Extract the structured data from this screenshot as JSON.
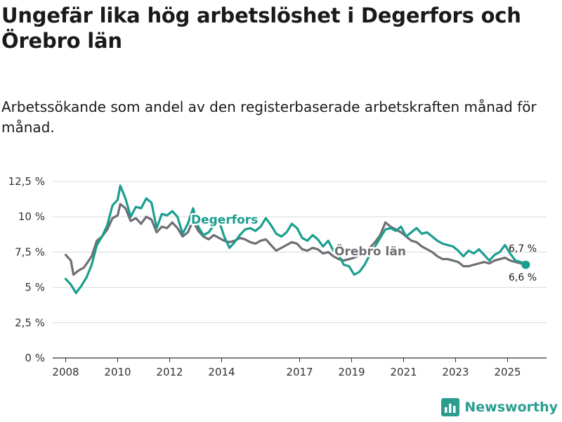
{
  "title": "Ungefär lika hög arbetslöshet i Degerfors och Örebro län",
  "subtitle": "Arbetssökande som andel av den registerbaserade arbetskraften månad för månad.",
  "brand": {
    "name": "Newsworthy",
    "icon": "bar-chart-logo-icon"
  },
  "colors": {
    "degerfors": "#1a9e8f",
    "orebro": "#6e6e73",
    "grid": "#d9d9d9",
    "axis": "#333333"
  },
  "chart_data": {
    "type": "line",
    "title": "Ungefär lika hög arbetslöshet i Degerfors och Örebro län",
    "ylabel": "",
    "xlabel": "",
    "ylim": [
      0,
      12.5
    ],
    "xlim": [
      2007.5,
      2026.5
    ],
    "y_ticks": [
      {
        "value": 0,
        "label": "0 %"
      },
      {
        "value": 2.5,
        "label": "2,5 %"
      },
      {
        "value": 5,
        "label": "5 %"
      },
      {
        "value": 7.5,
        "label": "7,5 %"
      },
      {
        "value": 10,
        "label": "10 %"
      },
      {
        "value": 12.5,
        "label": "12,5 %"
      }
    ],
    "x_ticks": [
      {
        "value": 2008,
        "label": "2008"
      },
      {
        "value": 2010,
        "label": "2010"
      },
      {
        "value": 2012,
        "label": "2012"
      },
      {
        "value": 2014,
        "label": "2014"
      },
      {
        "value": 2017,
        "label": "2017"
      },
      {
        "value": 2019,
        "label": "2019"
      },
      {
        "value": 2021,
        "label": "2021"
      },
      {
        "value": 2023,
        "label": "2023"
      },
      {
        "value": 2025,
        "label": "2025"
      }
    ],
    "series": [
      {
        "name": "Degerfors",
        "label": "Degerfors",
        "end_label": "6,7 %",
        "points": [
          [
            2008.0,
            5.6
          ],
          [
            2008.2,
            5.2
          ],
          [
            2008.4,
            4.6
          ],
          [
            2008.6,
            5.1
          ],
          [
            2008.8,
            5.7
          ],
          [
            2009.0,
            6.6
          ],
          [
            2009.2,
            8.0
          ],
          [
            2009.4,
            8.6
          ],
          [
            2009.6,
            9.4
          ],
          [
            2009.8,
            10.8
          ],
          [
            2010.0,
            11.2
          ],
          [
            2010.1,
            12.2
          ],
          [
            2010.3,
            11.3
          ],
          [
            2010.5,
            10.0
          ],
          [
            2010.7,
            10.7
          ],
          [
            2010.9,
            10.6
          ],
          [
            2011.1,
            11.3
          ],
          [
            2011.3,
            11.0
          ],
          [
            2011.5,
            9.2
          ],
          [
            2011.7,
            10.2
          ],
          [
            2011.9,
            10.1
          ],
          [
            2012.1,
            10.4
          ],
          [
            2012.3,
            10.0
          ],
          [
            2012.5,
            8.8
          ],
          [
            2012.7,
            9.5
          ],
          [
            2012.9,
            10.6
          ],
          [
            2013.1,
            9.3
          ],
          [
            2013.3,
            8.7
          ],
          [
            2013.5,
            8.9
          ],
          [
            2013.7,
            9.4
          ],
          [
            2013.9,
            9.7
          ],
          [
            2014.1,
            8.6
          ],
          [
            2014.3,
            7.8
          ],
          [
            2014.5,
            8.2
          ],
          [
            2014.7,
            8.7
          ],
          [
            2014.9,
            9.1
          ],
          [
            2015.1,
            9.2
          ],
          [
            2015.3,
            9.0
          ],
          [
            2015.5,
            9.3
          ],
          [
            2015.7,
            9.9
          ],
          [
            2015.9,
            9.4
          ],
          [
            2016.1,
            8.8
          ],
          [
            2016.3,
            8.6
          ],
          [
            2016.5,
            8.9
          ],
          [
            2016.7,
            9.5
          ],
          [
            2016.9,
            9.2
          ],
          [
            2017.1,
            8.5
          ],
          [
            2017.3,
            8.3
          ],
          [
            2017.5,
            8.7
          ],
          [
            2017.7,
            8.4
          ],
          [
            2017.9,
            7.9
          ],
          [
            2018.1,
            8.3
          ],
          [
            2018.3,
            7.6
          ],
          [
            2018.5,
            7.3
          ],
          [
            2018.7,
            6.6
          ],
          [
            2018.9,
            6.5
          ],
          [
            2019.1,
            5.9
          ],
          [
            2019.3,
            6.1
          ],
          [
            2019.5,
            6.6
          ],
          [
            2019.7,
            7.3
          ],
          [
            2019.9,
            7.9
          ],
          [
            2020.1,
            8.5
          ],
          [
            2020.3,
            9.1
          ],
          [
            2020.5,
            9.2
          ],
          [
            2020.7,
            9.0
          ],
          [
            2020.9,
            9.3
          ],
          [
            2021.1,
            8.6
          ],
          [
            2021.3,
            8.9
          ],
          [
            2021.5,
            9.2
          ],
          [
            2021.7,
            8.8
          ],
          [
            2021.9,
            8.9
          ],
          [
            2022.1,
            8.6
          ],
          [
            2022.3,
            8.3
          ],
          [
            2022.5,
            8.1
          ],
          [
            2022.7,
            8.0
          ],
          [
            2022.9,
            7.9
          ],
          [
            2023.1,
            7.6
          ],
          [
            2023.3,
            7.2
          ],
          [
            2023.5,
            7.6
          ],
          [
            2023.7,
            7.4
          ],
          [
            2023.9,
            7.7
          ],
          [
            2024.1,
            7.3
          ],
          [
            2024.3,
            6.9
          ],
          [
            2024.5,
            7.3
          ],
          [
            2024.7,
            7.5
          ],
          [
            2024.9,
            8.0
          ],
          [
            2025.1,
            7.4
          ],
          [
            2025.3,
            6.9
          ],
          [
            2025.5,
            6.8
          ],
          [
            2025.7,
            6.7
          ]
        ]
      },
      {
        "name": "Örebro län",
        "label": "Örebro län",
        "end_label": "6,6 %",
        "points": [
          [
            2008.0,
            7.3
          ],
          [
            2008.2,
            6.9
          ],
          [
            2008.3,
            5.9
          ],
          [
            2008.5,
            6.2
          ],
          [
            2008.7,
            6.4
          ],
          [
            2009.0,
            7.2
          ],
          [
            2009.2,
            8.3
          ],
          [
            2009.4,
            8.6
          ],
          [
            2009.6,
            9.1
          ],
          [
            2009.8,
            9.9
          ],
          [
            2010.0,
            10.1
          ],
          [
            2010.1,
            10.9
          ],
          [
            2010.3,
            10.6
          ],
          [
            2010.5,
            9.7
          ],
          [
            2010.7,
            9.9
          ],
          [
            2010.9,
            9.5
          ],
          [
            2011.1,
            10.0
          ],
          [
            2011.3,
            9.8
          ],
          [
            2011.5,
            8.9
          ],
          [
            2011.7,
            9.3
          ],
          [
            2011.9,
            9.2
          ],
          [
            2012.1,
            9.6
          ],
          [
            2012.3,
            9.2
          ],
          [
            2012.5,
            8.6
          ],
          [
            2012.7,
            8.9
          ],
          [
            2012.9,
            9.7
          ],
          [
            2013.1,
            9.0
          ],
          [
            2013.3,
            8.6
          ],
          [
            2013.5,
            8.4
          ],
          [
            2013.7,
            8.7
          ],
          [
            2013.9,
            8.5
          ],
          [
            2014.1,
            8.3
          ],
          [
            2014.3,
            8.2
          ],
          [
            2014.5,
            8.3
          ],
          [
            2014.7,
            8.5
          ],
          [
            2014.9,
            8.4
          ],
          [
            2015.1,
            8.2
          ],
          [
            2015.3,
            8.1
          ],
          [
            2015.5,
            8.3
          ],
          [
            2015.7,
            8.4
          ],
          [
            2015.9,
            8.0
          ],
          [
            2016.1,
            7.6
          ],
          [
            2016.3,
            7.8
          ],
          [
            2016.5,
            8.0
          ],
          [
            2016.7,
            8.2
          ],
          [
            2016.9,
            8.1
          ],
          [
            2017.1,
            7.7
          ],
          [
            2017.3,
            7.6
          ],
          [
            2017.5,
            7.8
          ],
          [
            2017.7,
            7.7
          ],
          [
            2017.9,
            7.4
          ],
          [
            2018.1,
            7.5
          ],
          [
            2018.3,
            7.2
          ],
          [
            2018.5,
            7.0
          ],
          [
            2018.7,
            6.9
          ],
          [
            2018.9,
            7.0
          ],
          [
            2019.1,
            7.1
          ],
          [
            2019.3,
            7.3
          ],
          [
            2019.5,
            7.6
          ],
          [
            2019.7,
            7.8
          ],
          [
            2019.9,
            8.2
          ],
          [
            2020.1,
            8.7
          ],
          [
            2020.3,
            9.6
          ],
          [
            2020.5,
            9.3
          ],
          [
            2020.7,
            9.1
          ],
          [
            2020.9,
            8.9
          ],
          [
            2021.1,
            8.6
          ],
          [
            2021.3,
            8.3
          ],
          [
            2021.5,
            8.2
          ],
          [
            2021.7,
            7.9
          ],
          [
            2021.9,
            7.7
          ],
          [
            2022.1,
            7.5
          ],
          [
            2022.3,
            7.2
          ],
          [
            2022.5,
            7.0
          ],
          [
            2022.7,
            7.0
          ],
          [
            2022.9,
            6.9
          ],
          [
            2023.1,
            6.8
          ],
          [
            2023.3,
            6.5
          ],
          [
            2023.5,
            6.5
          ],
          [
            2023.7,
            6.6
          ],
          [
            2023.9,
            6.7
          ],
          [
            2024.1,
            6.8
          ],
          [
            2024.3,
            6.7
          ],
          [
            2024.5,
            6.9
          ],
          [
            2024.7,
            7.0
          ],
          [
            2024.9,
            7.1
          ],
          [
            2025.1,
            6.9
          ],
          [
            2025.3,
            6.8
          ],
          [
            2025.5,
            6.7
          ],
          [
            2025.7,
            6.6
          ]
        ]
      }
    ]
  }
}
